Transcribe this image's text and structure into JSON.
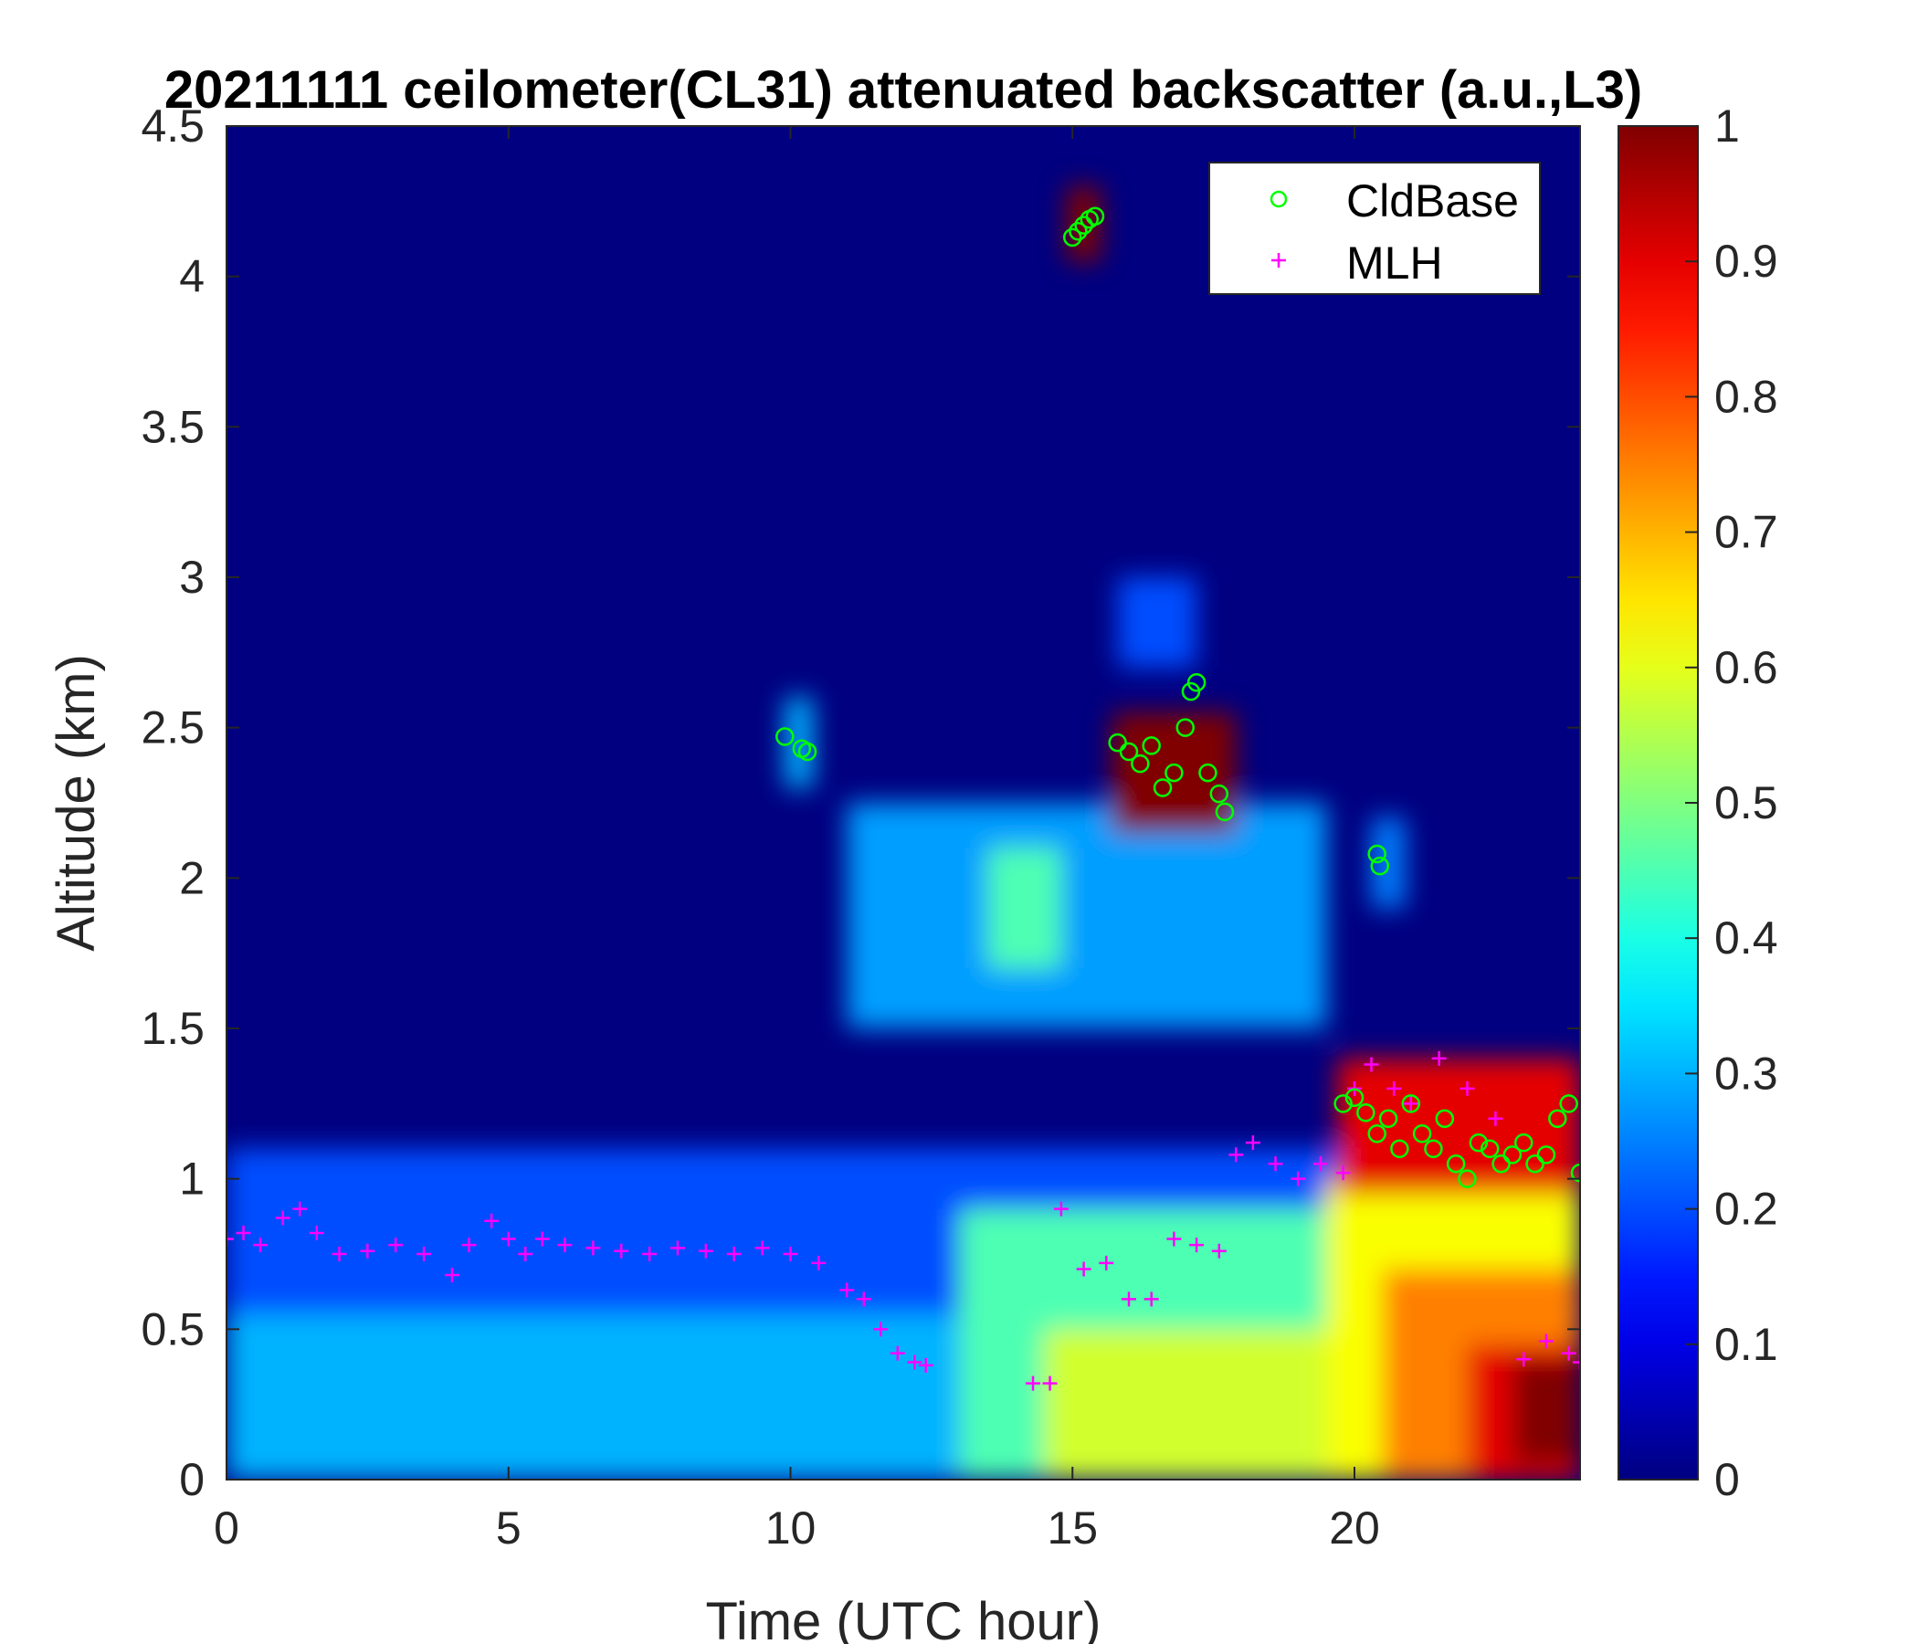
{
  "chart_data": {
    "type": "heatmap",
    "title": "20211111 ceilometer(CL31) attenuated backscatter (a.u.,L3)",
    "xlabel": "Time (UTC hour)",
    "ylabel": "Altitude (km)",
    "xlim": [
      0,
      24
    ],
    "ylim": [
      0,
      4.5
    ],
    "x_ticks": [
      "0",
      "5",
      "10",
      "15",
      "20"
    ],
    "y_ticks": [
      "0",
      "0.5",
      "1",
      "1.5",
      "2",
      "2.5",
      "3",
      "3.5",
      "4",
      "4.5"
    ],
    "colorbar": {
      "colormap": "jet",
      "range": [
        0,
        1
      ],
      "ticks": [
        "0",
        "0.1",
        "0.2",
        "0.3",
        "0.4",
        "0.5",
        "0.6",
        "0.7",
        "0.8",
        "0.9",
        "1"
      ]
    },
    "legend": {
      "position": "top-right",
      "entries": [
        {
          "label": "CldBase",
          "marker": "circle",
          "color": "#00ff00"
        },
        {
          "label": "MLH",
          "marker": "plus",
          "color": "#ff00ff"
        }
      ]
    },
    "backscatter_regions": [
      {
        "t0": 0,
        "t1": 24,
        "z0": 0,
        "z1": 1.1,
        "value": 0.2
      },
      {
        "t0": 0,
        "t1": 13,
        "z0": 0,
        "z1": 0.55,
        "value": 0.3
      },
      {
        "t0": 13,
        "t1": 19.5,
        "z0": 0,
        "z1": 0.9,
        "value": 0.45
      },
      {
        "t0": 14.5,
        "t1": 19.5,
        "z0": 0,
        "z1": 0.5,
        "value": 0.58
      },
      {
        "t0": 19.5,
        "t1": 24,
        "z0": 0,
        "z1": 1.0,
        "value": 0.62
      },
      {
        "t0": 20.5,
        "t1": 24,
        "z0": 0,
        "z1": 0.7,
        "value": 0.75
      },
      {
        "t0": 22,
        "t1": 24,
        "z0": 0,
        "z1": 0.45,
        "value": 0.9
      },
      {
        "t0": 22.8,
        "t1": 24,
        "z0": 0.05,
        "z1": 0.4,
        "value": 1.0
      },
      {
        "t0": 11,
        "t1": 19.5,
        "z0": 1.5,
        "z1": 2.25,
        "value": 0.28
      },
      {
        "t0": 13.5,
        "t1": 14.8,
        "z0": 1.7,
        "z1": 2.1,
        "value": 0.45
      },
      {
        "t0": 15.8,
        "t1": 17.2,
        "z0": 2.7,
        "z1": 3.0,
        "value": 0.2
      },
      {
        "t0": 15.7,
        "t1": 17.9,
        "z0": 2.15,
        "z1": 2.55,
        "value": 1.0
      },
      {
        "t0": 14.9,
        "t1": 15.5,
        "z0": 4.05,
        "z1": 4.3,
        "value": 1.0
      },
      {
        "t0": 9.9,
        "t1": 10.4,
        "z0": 2.3,
        "z1": 2.6,
        "value": 0.3
      },
      {
        "t0": 19.7,
        "t1": 24,
        "z0": 0.95,
        "z1": 1.4,
        "value": 0.9
      },
      {
        "t0": 20.3,
        "t1": 20.9,
        "z0": 1.9,
        "z1": 2.2,
        "value": 0.25
      }
    ],
    "series": [
      {
        "name": "CldBase",
        "x": [
          9.9,
          10.2,
          10.3,
          15.0,
          15.1,
          15.2,
          15.3,
          15.4,
          15.8,
          16.0,
          16.2,
          16.4,
          16.6,
          16.8,
          17.0,
          17.1,
          17.2,
          17.4,
          17.6,
          17.7,
          20.4,
          20.45,
          19.8,
          20.0,
          20.2,
          20.4,
          20.6,
          20.8,
          21.0,
          21.2,
          21.4,
          21.6,
          21.8,
          22.0,
          22.2,
          22.4,
          22.6,
          22.8,
          23.0,
          23.2,
          23.4,
          23.6,
          23.8,
          24.0
        ],
        "y": [
          2.47,
          2.43,
          2.42,
          4.13,
          4.15,
          4.17,
          4.19,
          4.2,
          2.45,
          2.42,
          2.38,
          2.44,
          2.3,
          2.35,
          2.5,
          2.62,
          2.65,
          2.35,
          2.28,
          2.22,
          2.08,
          2.04,
          1.25,
          1.27,
          1.22,
          1.15,
          1.2,
          1.1,
          1.25,
          1.15,
          1.1,
          1.2,
          1.05,
          1.0,
          1.12,
          1.1,
          1.05,
          1.08,
          1.12,
          1.05,
          1.08,
          1.2,
          1.25,
          1.02
        ]
      },
      {
        "name": "MLH",
        "x": [
          0,
          0.3,
          0.6,
          1.0,
          1.3,
          1.6,
          2.0,
          2.5,
          3.0,
          3.5,
          4.0,
          4.3,
          4.7,
          5.0,
          5.3,
          5.6,
          6.0,
          6.5,
          7.0,
          7.5,
          8.0,
          8.5,
          9.0,
          9.5,
          10.0,
          10.5,
          11.0,
          11.3,
          11.6,
          11.9,
          12.2,
          12.4,
          14.3,
          14.6,
          14.8,
          15.2,
          15.6,
          16.0,
          16.4,
          16.8,
          17.2,
          17.6,
          17.9,
          18.2,
          18.6,
          19.0,
          19.4,
          19.8,
          20.0,
          20.3,
          20.7,
          21.0,
          21.5,
          22.0,
          22.5,
          23.0,
          23.4,
          23.8,
          24.0
        ],
        "y": [
          0.8,
          0.82,
          0.78,
          0.87,
          0.9,
          0.82,
          0.75,
          0.76,
          0.78,
          0.75,
          0.68,
          0.78,
          0.86,
          0.8,
          0.75,
          0.8,
          0.78,
          0.77,
          0.76,
          0.75,
          0.77,
          0.76,
          0.75,
          0.77,
          0.75,
          0.72,
          0.63,
          0.6,
          0.5,
          0.42,
          0.39,
          0.38,
          0.32,
          0.32,
          0.9,
          0.7,
          0.72,
          0.6,
          0.6,
          0.8,
          0.78,
          0.76,
          1.08,
          1.12,
          1.05,
          1.0,
          1.05,
          1.02,
          1.3,
          1.38,
          1.3,
          1.25,
          1.4,
          1.3,
          1.2,
          0.4,
          0.46,
          0.42,
          0.39
        ]
      }
    ]
  }
}
